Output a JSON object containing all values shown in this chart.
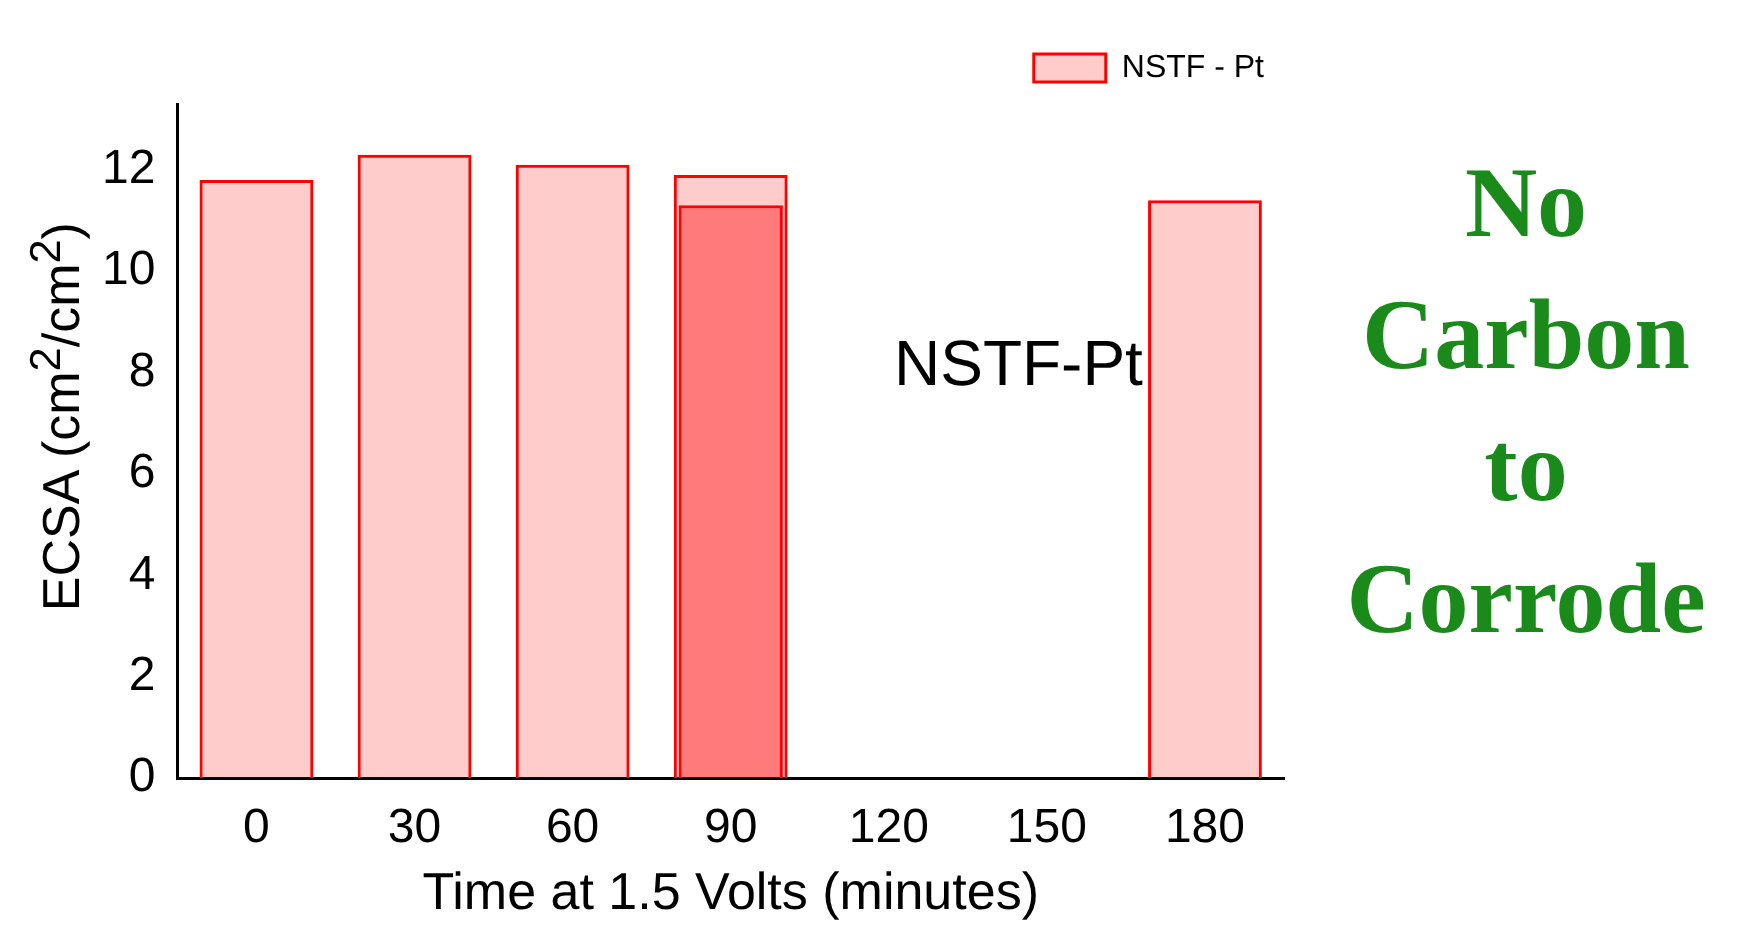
{
  "chart_data": {
    "type": "bar",
    "xlabel": "Time at 1.5 Volts (minutes)",
    "ylabel": "ECSA (cm$^{2}$/cm$^{2}$)",
    "categories": [
      "0",
      "30",
      "60",
      "90",
      "120",
      "150",
      "180"
    ],
    "series": [
      {
        "name": "NSTF - Pt",
        "color": "#ff0000",
        "values": [
          11.8,
          12.3,
          12.1,
          11.9,
          null,
          null,
          11.4
        ]
      },
      {
        "color": "#ff0000",
        "values": [
          null,
          null,
          null,
          11.3,
          null,
          null,
          null
        ]
      }
    ],
    "ylim": [
      0,
      13.3
    ],
    "yticks": [
      0,
      2,
      4,
      6,
      8,
      10,
      12
    ],
    "grid": false,
    "legend": "top right",
    "annotations": [
      "NSTF-Pt",
      "No Carbon to Corrode"
    ]
  }
}
